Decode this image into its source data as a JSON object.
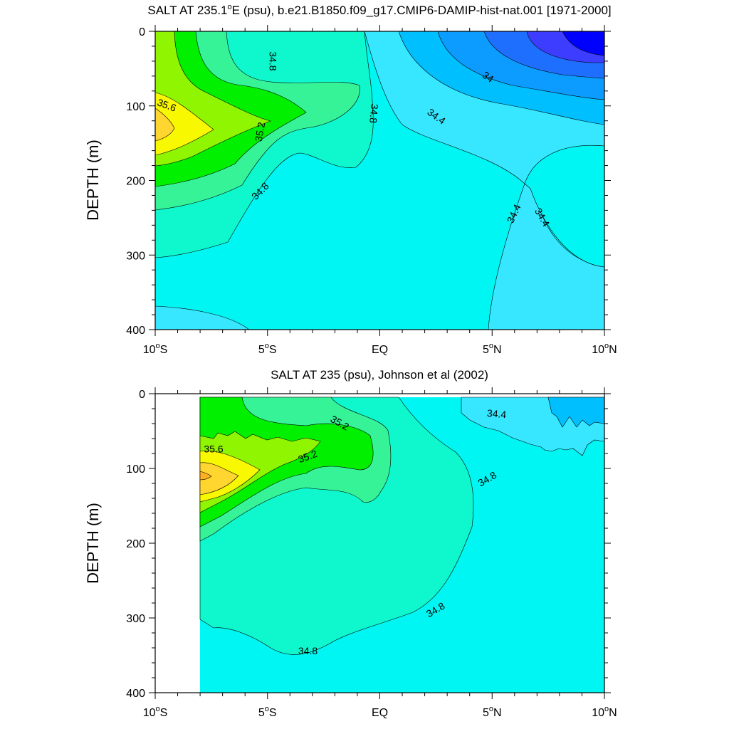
{
  "chart_data": [
    {
      "type": "contour",
      "title_prefix": "SALT AT 235.1",
      "title_sup": "o",
      "title_suffix": "E (psu), b.e21.B1850.f09_g17.CMIP6-DAMIP-hist-nat.001 [1971-2000]",
      "ylabel": "DEPTH (m)",
      "xlim": [
        -10,
        10
      ],
      "ylim": [
        400,
        0
      ],
      "x_ticks": [
        {
          "value": -10,
          "num": "10",
          "sup": "o",
          "hemi": "S"
        },
        {
          "value": -5,
          "num": "5",
          "sup": "o",
          "hemi": "S"
        },
        {
          "value": 0,
          "num": "EQ",
          "sup": "",
          "hemi": ""
        },
        {
          "value": 5,
          "num": "5",
          "sup": "o",
          "hemi": "N"
        },
        {
          "value": 10,
          "num": "10",
          "sup": "o",
          "hemi": "N"
        }
      ],
      "y_ticks": [
        "0",
        "100",
        "200",
        "300",
        "400"
      ],
      "y_tick_values": [
        0,
        100,
        200,
        300,
        400
      ],
      "contour_labels": [
        {
          "text": "34.8",
          "lon": -4.8,
          "depth": 40,
          "angle": 90
        },
        {
          "text": "35.6",
          "lon": -9.5,
          "depth": 100,
          "angle": 20
        },
        {
          "text": "35.2",
          "lon": -5.3,
          "depth": 135,
          "angle": -80
        },
        {
          "text": "34.8",
          "lon": -5.3,
          "depth": 215,
          "angle": -45
        },
        {
          "text": "34.8",
          "lon": -0.3,
          "depth": 110,
          "angle": 95
        },
        {
          "text": "34",
          "lon": 4.8,
          "depth": 62,
          "angle": 35
        },
        {
          "text": "34.4",
          "lon": 2.5,
          "depth": 115,
          "angle": 35
        },
        {
          "text": "34.4",
          "lon": 6.0,
          "depth": 245,
          "angle": -65
        },
        {
          "text": "34.4",
          "lon": 7.2,
          "depth": 250,
          "angle": 60
        }
      ]
    },
    {
      "type": "contour",
      "title_prefix": "SALT AT 235 (psu), Johnson et al (2002)",
      "title_sup": "",
      "title_suffix": "",
      "ylabel": "DEPTH (m)",
      "xlim": [
        -10,
        10
      ],
      "ylim": [
        400,
        0
      ],
      "x_ticks": [
        {
          "value": -10,
          "num": "10",
          "sup": "o",
          "hemi": "S"
        },
        {
          "value": -5,
          "num": "5",
          "sup": "o",
          "hemi": "S"
        },
        {
          "value": 0,
          "num": "EQ",
          "sup": "",
          "hemi": ""
        },
        {
          "value": 5,
          "num": "5",
          "sup": "o",
          "hemi": "N"
        },
        {
          "value": 10,
          "num": "10",
          "sup": "o",
          "hemi": "N"
        }
      ],
      "y_ticks": [
        "0",
        "100",
        "200",
        "300",
        "400"
      ],
      "y_tick_values": [
        0,
        100,
        200,
        300,
        400
      ],
      "contour_labels": [
        {
          "text": "35.2",
          "lon": -1.8,
          "depth": 40,
          "angle": 30
        },
        {
          "text": "35.6",
          "lon": -7.4,
          "depth": 75,
          "angle": 0
        },
        {
          "text": "35.2",
          "lon": -3.2,
          "depth": 85,
          "angle": -20
        },
        {
          "text": "34.4",
          "lon": 5.2,
          "depth": 28,
          "angle": 5
        },
        {
          "text": "34.8",
          "lon": 4.8,
          "depth": 115,
          "angle": -30
        },
        {
          "text": "34.8",
          "lon": 2.5,
          "depth": 290,
          "angle": -30
        },
        {
          "text": "34.8",
          "lon": -3.2,
          "depth": 345,
          "angle": 0
        }
      ]
    }
  ],
  "colors": {
    "c33_6": "#1f6fff",
    "c34_0": "#0c9cff",
    "c34_2": "#00bfff",
    "c34_4": "#36e7ff",
    "c34_6": "#00f6f2",
    "c34_8": "#0ef7cd",
    "c35_0": "#36f398",
    "c35_2": "#00f000",
    "c35_4": "#90f500",
    "c35_6": "#f8f800",
    "c35_8": "#ffd52f",
    "c36_0": "#ffb020",
    "deep": "#0000ff"
  }
}
